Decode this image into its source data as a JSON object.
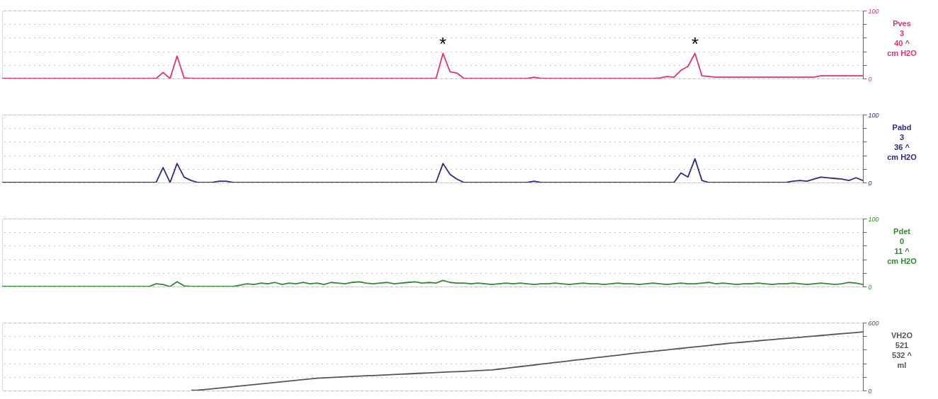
{
  "chart_data": [
    {
      "type": "line",
      "categories": [
        null,
        null,
        null,
        null,
        null,
        null,
        null,
        null,
        null,
        null,
        null,
        null,
        null,
        null,
        null,
        null,
        null,
        null,
        null,
        null,
        null,
        null,
        null,
        null,
        null,
        null,
        null,
        null,
        null,
        null,
        null,
        null,
        null,
        null,
        null,
        null,
        null,
        null,
        null,
        null,
        null,
        null,
        null,
        null,
        null,
        null,
        null,
        null,
        null,
        null,
        null,
        null,
        null,
        null,
        null,
        null,
        null,
        null,
        null,
        null,
        null,
        null,
        null,
        null,
        null,
        null,
        null,
        null,
        null,
        null,
        null,
        null,
        null,
        null,
        null,
        null,
        null,
        null,
        null,
        null,
        null,
        null,
        null,
        null,
        null,
        null,
        null,
        null,
        null,
        null,
        null,
        null,
        null,
        null,
        null,
        null,
        null,
        null,
        null,
        null,
        null,
        null,
        null,
        null,
        null,
        null,
        null,
        null,
        null,
        null,
        null,
        null,
        null,
        null,
        null,
        null,
        null,
        null,
        null,
        null,
        null,
        null,
        null,
        null
      ],
      "series": [
        {
          "name": "Pves",
          "color": "#e2336b",
          "values": [
            0,
            0,
            0,
            0,
            0,
            0,
            0,
            0,
            0,
            0,
            0,
            0,
            0,
            0,
            0,
            0,
            0,
            0,
            0,
            0,
            0,
            0,
            0,
            9,
            0,
            33,
            1,
            0,
            0,
            0,
            0,
            0,
            0,
            0,
            0,
            0,
            0,
            0,
            0,
            0,
            0,
            0,
            0,
            0,
            0,
            0,
            0,
            0,
            0,
            0,
            0,
            0,
            0,
            0,
            0,
            0,
            0,
            0,
            0,
            0,
            0,
            0,
            0,
            37,
            10,
            8,
            0,
            0,
            0,
            0,
            0,
            0,
            0,
            0,
            0,
            0,
            2,
            0,
            0,
            0,
            0,
            0,
            0,
            0,
            0,
            0,
            0,
            0,
            0,
            0,
            0,
            0,
            0,
            0,
            1,
            3,
            2,
            12,
            18,
            37,
            4,
            3,
            2,
            2,
            2,
            2,
            2,
            2,
            2,
            2,
            2,
            2,
            2,
            2,
            2,
            2,
            2,
            4,
            4,
            4,
            4,
            4,
            4,
            4
          ]
        }
      ],
      "ylim": [
        0,
        100
      ],
      "yticks": [
        0,
        {
          "value": 20,
          "label": null
        },
        {
          "value": 40,
          "label": null
        },
        {
          "value": 60,
          "label": null
        },
        {
          "value": 80,
          "label": null
        },
        100
      ],
      "grid": "y",
      "tick_labels": "y",
      "annotations": [
        "*",
        "*",
        "3",
        "40 ^",
        "cm H2O"
      ]
    },
    {
      "type": "line",
      "categories": [
        null,
        null,
        null,
        null,
        null,
        null,
        null,
        null,
        null,
        null,
        null,
        null,
        null,
        null,
        null,
        null,
        null,
        null,
        null,
        null,
        null,
        null,
        null,
        null,
        null,
        null,
        null,
        null,
        null,
        null,
        null,
        null,
        null,
        null,
        null,
        null,
        null,
        null,
        null,
        null,
        null,
        null,
        null,
        null,
        null,
        null,
        null,
        null,
        null,
        null,
        null,
        null,
        null,
        null,
        null,
        null,
        null,
        null,
        null,
        null,
        null,
        null,
        null,
        null,
        null,
        null,
        null,
        null,
        null,
        null,
        null,
        null,
        null,
        null,
        null,
        null,
        null,
        null,
        null,
        null,
        null,
        null,
        null,
        null,
        null,
        null,
        null,
        null,
        null,
        null,
        null,
        null,
        null,
        null,
        null,
        null,
        null,
        null,
        null,
        null,
        null,
        null,
        null,
        null,
        null,
        null,
        null,
        null,
        null,
        null,
        null,
        null,
        null,
        null,
        null,
        null,
        null,
        null,
        null,
        null,
        null,
        null,
        null,
        null
      ],
      "series": [
        {
          "name": "Pabd",
          "color": "#2e2a85",
          "values": [
            0,
            0,
            0,
            0,
            0,
            0,
            0,
            0,
            0,
            0,
            0,
            0,
            0,
            0,
            0,
            0,
            0,
            0,
            0,
            0,
            0,
            0,
            0,
            22,
            0,
            28,
            8,
            3,
            0,
            0,
            0,
            2,
            2,
            0,
            0,
            0,
            0,
            0,
            0,
            0,
            0,
            0,
            0,
            0,
            0,
            0,
            0,
            0,
            0,
            0,
            0,
            0,
            0,
            0,
            0,
            0,
            0,
            0,
            0,
            0,
            0,
            0,
            0,
            28,
            12,
            5,
            0,
            0,
            0,
            0,
            0,
            0,
            0,
            0,
            0,
            0,
            2,
            0,
            0,
            0,
            0,
            0,
            0,
            0,
            0,
            0,
            0,
            0,
            0,
            0,
            0,
            0,
            0,
            0,
            0,
            0,
            0,
            14,
            8,
            35,
            3,
            0,
            0,
            0,
            0,
            0,
            0,
            0,
            0,
            0,
            0,
            0,
            0,
            2,
            3,
            2,
            5,
            8,
            7,
            6,
            5,
            3,
            7,
            3
          ]
        }
      ],
      "ylim": [
        0,
        100
      ],
      "yticks": [
        0,
        {
          "value": 20,
          "label": null
        },
        {
          "value": 40,
          "label": null
        },
        {
          "value": 60,
          "label": null
        },
        {
          "value": 80,
          "label": null
        },
        100
      ],
      "grid": "y",
      "tick_labels": "y",
      "annotations": [
        "3",
        "36 ^",
        "cm H2O"
      ]
    },
    {
      "type": "line",
      "categories": [
        null,
        null,
        null,
        null,
        null,
        null,
        null,
        null,
        null,
        null,
        null,
        null,
        null,
        null,
        null,
        null,
        null,
        null,
        null,
        null,
        null,
        null,
        null,
        null,
        null,
        null,
        null,
        null,
        null,
        null,
        null,
        null,
        null,
        null,
        null,
        null,
        null,
        null,
        null,
        null,
        null,
        null,
        null,
        null,
        null,
        null,
        null,
        null,
        null,
        null,
        null,
        null,
        null,
        null,
        null,
        null,
        null,
        null,
        null,
        null,
        null,
        null,
        null,
        null,
        null,
        null,
        null,
        null,
        null,
        null,
        null,
        null,
        null,
        null,
        null,
        null,
        null,
        null,
        null,
        null,
        null,
        null,
        null,
        null,
        null,
        null,
        null,
        null,
        null,
        null,
        null,
        null,
        null,
        null,
        null,
        null,
        null,
        null,
        null,
        null,
        null,
        null,
        null,
        null,
        null,
        null,
        null,
        null,
        null,
        null,
        null,
        null,
        null,
        null,
        null,
        null,
        null,
        null,
        null,
        null,
        null,
        null,
        null,
        null
      ],
      "series": [
        {
          "name": "Pdet",
          "color": "#2f8a2f",
          "values": [
            0,
            0,
            0,
            0,
            0,
            0,
            0,
            0,
            0,
            0,
            0,
            0,
            0,
            0,
            0,
            0,
            0,
            0,
            0,
            0,
            0,
            0,
            4,
            3,
            0,
            7,
            1,
            0,
            0,
            0,
            0,
            0,
            0,
            0,
            2,
            4,
            3,
            5,
            4,
            6,
            3,
            5,
            4,
            6,
            4,
            5,
            3,
            6,
            5,
            4,
            6,
            7,
            5,
            4,
            5,
            6,
            4,
            5,
            6,
            7,
            5,
            6,
            5,
            9,
            6,
            5,
            5,
            4,
            5,
            4,
            3,
            4,
            5,
            4,
            5,
            4,
            3,
            4,
            4,
            5,
            4,
            3,
            4,
            5,
            4,
            4,
            3,
            4,
            5,
            4,
            4,
            3,
            4,
            5,
            4,
            3,
            4,
            5,
            4,
            4,
            5,
            6,
            4,
            5,
            4,
            3,
            4,
            4,
            5,
            4,
            3,
            4,
            4,
            5,
            4,
            3,
            4,
            5,
            4,
            3,
            4,
            6,
            5,
            3
          ]
        }
      ],
      "ylim": [
        0,
        100
      ],
      "yticks": [
        0,
        {
          "value": 20,
          "label": null
        },
        {
          "value": 40,
          "label": null
        },
        {
          "value": 60,
          "label": null
        },
        {
          "value": 80,
          "label": null
        },
        100
      ],
      "grid": "y",
      "tick_labels": "y",
      "annotations": [
        "0",
        "11 ^",
        "cm H2O"
      ]
    },
    {
      "type": "line",
      "categories": [
        null,
        null,
        null,
        null,
        null,
        null,
        null,
        null,
        null,
        null,
        null,
        null,
        null,
        null,
        null,
        null,
        null,
        null,
        null,
        null,
        null,
        null,
        null,
        null,
        null,
        null,
        null,
        null,
        null,
        null,
        null,
        null,
        null,
        null,
        null,
        null,
        null,
        null,
        null,
        null,
        null,
        null,
        null,
        null,
        null,
        null,
        null,
        null,
        null,
        null,
        null,
        null,
        null,
        null,
        null,
        null,
        null,
        null,
        null,
        null,
        null,
        null,
        null,
        null,
        null,
        null,
        null,
        null,
        null,
        null,
        null,
        null,
        null,
        null,
        null,
        null,
        null,
        null,
        null,
        null,
        null,
        null,
        null,
        null,
        null,
        null,
        null,
        null,
        null,
        null,
        null,
        null,
        null,
        null,
        null,
        null,
        null,
        null,
        null,
        null,
        null,
        null,
        null,
        null,
        null,
        null,
        null,
        null,
        null,
        null,
        null,
        null,
        null,
        null,
        null,
        null,
        null,
        null,
        null,
        null,
        null,
        null,
        null,
        null
      ],
      "series": [
        {
          "name": "VH2O",
          "color": "#555555",
          "values": [
            null,
            null,
            null,
            null,
            null,
            null,
            null,
            null,
            null,
            null,
            null,
            null,
            null,
            null,
            null,
            null,
            null,
            null,
            null,
            null,
            null,
            null,
            null,
            null,
            null,
            null,
            null,
            0,
            3,
            9,
            15,
            21,
            28,
            34,
            40,
            46,
            52,
            59,
            65,
            71,
            77,
            84,
            90,
            96,
            102,
            109,
            112,
            115,
            118,
            121,
            124,
            127,
            130,
            132,
            135,
            138,
            141,
            144,
            147,
            150,
            153,
            156,
            159,
            162,
            165,
            167,
            170,
            173,
            176,
            179,
            182,
            189,
            196,
            204,
            211,
            218,
            225,
            233,
            240,
            247,
            254,
            262,
            269,
            276,
            283,
            291,
            298,
            305,
            312,
            320,
            327,
            333,
            340,
            346,
            353,
            359,
            366,
            372,
            379,
            385,
            392,
            398,
            405,
            411,
            418,
            423,
            428,
            434,
            439,
            444,
            449,
            455,
            460,
            465,
            470,
            476,
            481,
            486,
            491,
            497,
            502,
            507,
            512,
            518
          ]
        }
      ],
      "ylim": [
        0,
        600
      ],
      "yticks": [
        0,
        {
          "value": 120,
          "label": null
        },
        {
          "value": 240,
          "label": null
        },
        {
          "value": 360,
          "label": null
        },
        {
          "value": 480,
          "label": null
        },
        600
      ],
      "grid": "y",
      "tick_labels": "y",
      "annotations": [
        "521",
        "532 ^",
        "ml"
      ]
    }
  ]
}
